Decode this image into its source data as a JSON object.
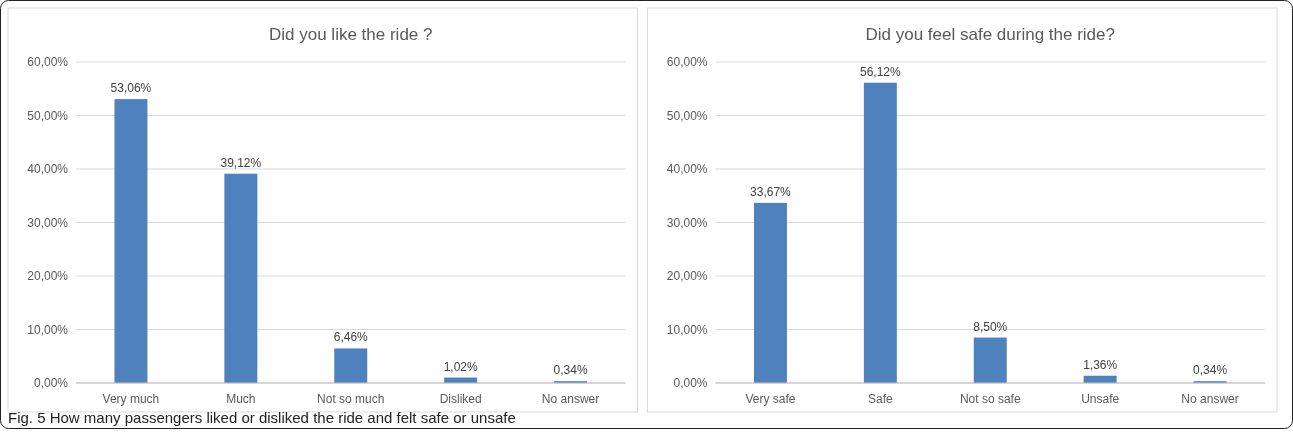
{
  "chart_data": [
    {
      "type": "bar",
      "title": "Did you like the ride ?",
      "categories": [
        "Very much",
        "Much",
        "Not so much",
        "Disliked",
        "No answer"
      ],
      "values": [
        53.06,
        39.12,
        6.46,
        1.02,
        0.34
      ],
      "value_labels": [
        "53,06%",
        "39,12%",
        "6,46%",
        "1,02%",
        "0,34%"
      ],
      "color": "#4f81bd",
      "ylim": [
        0,
        60
      ],
      "yticks": [
        {
          "value": 0,
          "label": "0,00%"
        },
        {
          "value": 10,
          "label": "10,00%"
        },
        {
          "value": 20,
          "label": "20,00%"
        },
        {
          "value": 30,
          "label": "30,00%"
        },
        {
          "value": 40,
          "label": "40,00%"
        },
        {
          "value": 50,
          "label": "50,00%"
        },
        {
          "value": 60,
          "label": "60,00%"
        }
      ],
      "grid": "y",
      "annotations": [
        "Fig. 5 How many passengers liked or disliked the ride and felt safe or unsafe"
      ]
    },
    {
      "type": "bar",
      "title": "Did you feel safe during the ride?",
      "categories": [
        "Very safe",
        "Safe",
        "Not so safe",
        "Unsafe",
        "No answer"
      ],
      "values": [
        33.67,
        56.12,
        8.5,
        1.36,
        0.34
      ],
      "value_labels": [
        "33,67%",
        "56,12%",
        "8,50%",
        "1,36%",
        "0,34%"
      ],
      "color": "#4f81bd",
      "ylim": [
        0,
        60
      ],
      "yticks": [
        {
          "value": 0,
          "label": "0,00%"
        },
        {
          "value": 10,
          "label": "10,00%"
        },
        {
          "value": 20,
          "label": "20,00%"
        },
        {
          "value": 30,
          "label": "30,00%"
        },
        {
          "value": 40,
          "label": "40,00%"
        },
        {
          "value": 50,
          "label": "50,00%"
        },
        {
          "value": 60,
          "label": "60,00%"
        }
      ],
      "grid": "y"
    }
  ]
}
